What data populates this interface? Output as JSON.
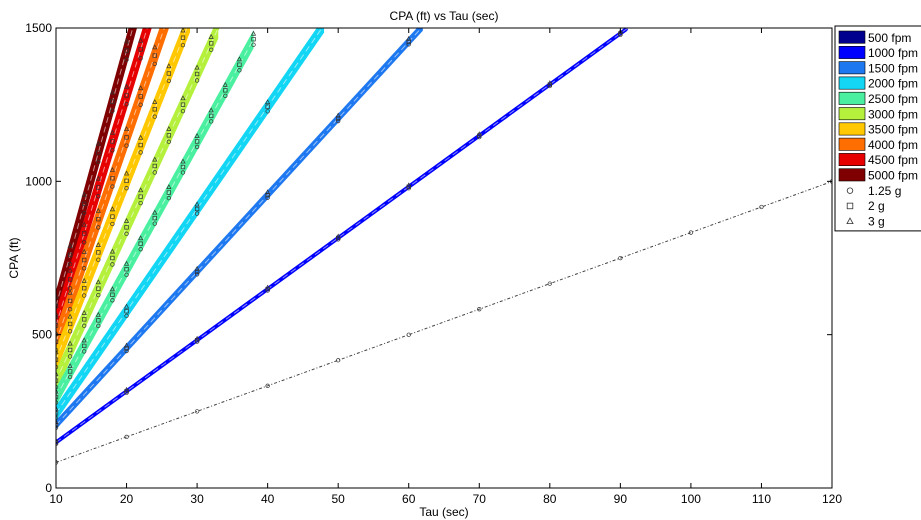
{
  "chart_data": {
    "type": "line",
    "title": "CPA (ft) vs Tau (sec)",
    "xlabel": "Tau (sec)",
    "ylabel": "CPA (ft)",
    "xlim": [
      10,
      120
    ],
    "ylim": [
      0,
      1500
    ],
    "xticks": [
      "10",
      "20",
      "30",
      "40",
      "50",
      "60",
      "70",
      "80",
      "90",
      "100",
      "110",
      "120"
    ],
    "yticks": [
      "0",
      "500",
      "1000",
      "1500"
    ],
    "grid": false,
    "legend_position": "outside-right-top",
    "series": [
      {
        "name": "500 fpm",
        "color": "#00008f",
        "slope": 8.33,
        "intercept": 0,
        "band": [
          0,
          0
        ],
        "ends": [
          10,
          120
        ],
        "markers": [
          "circle",
          "square",
          "triangle"
        ]
      },
      {
        "name": "1000 fpm",
        "color": "#0000ff",
        "slope": 16.67,
        "intercept": -18,
        "band": [
          -8,
          8
        ],
        "ends": [
          10,
          91
        ],
        "markers": [
          "circle",
          "square",
          "triangle"
        ]
      },
      {
        "name": "1500 fpm",
        "color": "#1e78f0",
        "slope": 25,
        "intercept": -45,
        "band": [
          -14,
          16
        ],
        "ends": [
          10,
          62
        ],
        "markers": [
          "circle",
          "square",
          "triangle"
        ]
      },
      {
        "name": "2000 fpm",
        "color": "#12d6f4",
        "slope": 33.33,
        "intercept": -90,
        "band": [
          -25,
          25
        ],
        "ends": [
          10,
          48
        ],
        "markers": [
          "circle",
          "square",
          "triangle"
        ]
      },
      {
        "name": "2500 fpm",
        "color": "#4af0a0",
        "slope": 41.67,
        "intercept": -120,
        "band": [
          -30,
          30
        ],
        "ends": [
          10,
          38
        ],
        "markers": [
          "circle",
          "square",
          "triangle"
        ]
      },
      {
        "name": "3000 fpm",
        "color": "#b4f03c",
        "slope": 50,
        "intercept": -150,
        "band": [
          -35,
          35
        ],
        "ends": [
          10,
          33
        ],
        "markers": [
          "circle",
          "square",
          "triangle"
        ]
      },
      {
        "name": "3500 fpm",
        "color": "#ffc800",
        "slope": 58.33,
        "intercept": -165,
        "band": [
          -40,
          40
        ],
        "ends": [
          10,
          29
        ],
        "markers": [
          "circle",
          "square",
          "triangle"
        ]
      },
      {
        "name": "4000 fpm",
        "color": "#ff6e00",
        "slope": 66.67,
        "intercept": -190,
        "band": [
          -45,
          45
        ],
        "ends": [
          10,
          27
        ],
        "markers": [
          "circle",
          "square",
          "triangle"
        ]
      },
      {
        "name": "4500 fpm",
        "color": "#e60000",
        "slope": 75,
        "intercept": -220,
        "band": [
          -48,
          48
        ],
        "ends": [
          10,
          25
        ],
        "markers": [
          "circle",
          "square",
          "triangle"
        ]
      },
      {
        "name": "5000 fpm",
        "color": "#7f0000",
        "slope": 83.33,
        "intercept": -240,
        "band": [
          -50,
          50
        ],
        "ends": [
          10,
          23
        ],
        "markers": [
          "circle",
          "square",
          "triangle"
        ]
      }
    ],
    "marker_series": [
      {
        "name": "1.25 g",
        "marker": "circle"
      },
      {
        "name": "2 g",
        "marker": "square"
      },
      {
        "name": "3 g",
        "marker": "triangle"
      }
    ]
  }
}
